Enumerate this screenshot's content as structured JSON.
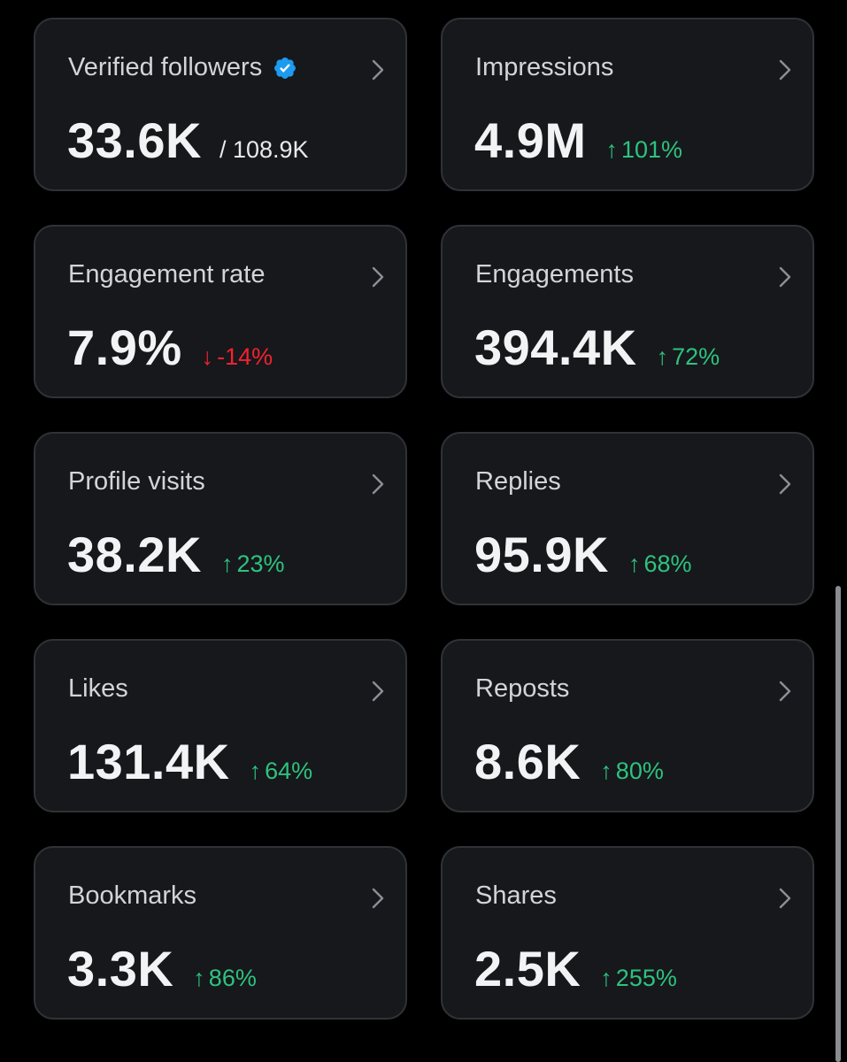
{
  "colors": {
    "up": "#2ec27e",
    "down": "#f4212e",
    "verified": "#1d9bf0"
  },
  "cards": [
    {
      "title": "Verified followers",
      "value": "33.6K",
      "sub": "/ 108.9K"
    },
    {
      "title": "Impressions",
      "value": "4.9M",
      "delta_arrow": "↑",
      "delta": "101%"
    },
    {
      "title": "Engagement rate",
      "value": "7.9%",
      "delta_arrow": "↓",
      "delta": "-14%"
    },
    {
      "title": "Engagements",
      "value": "394.4K",
      "delta_arrow": "↑",
      "delta": "72%"
    },
    {
      "title": "Profile visits",
      "value": "38.2K",
      "delta_arrow": "↑",
      "delta": "23%"
    },
    {
      "title": "Replies",
      "value": "95.9K",
      "delta_arrow": "↑",
      "delta": "68%"
    },
    {
      "title": "Likes",
      "value": "131.4K",
      "delta_arrow": "↑",
      "delta": "64%"
    },
    {
      "title": "Reposts",
      "value": "8.6K",
      "delta_arrow": "↑",
      "delta": "80%"
    },
    {
      "title": "Bookmarks",
      "value": "3.3K",
      "delta_arrow": "↑",
      "delta": "86%"
    },
    {
      "title": "Shares",
      "value": "2.5K",
      "delta_arrow": "↑",
      "delta": "255%"
    }
  ]
}
